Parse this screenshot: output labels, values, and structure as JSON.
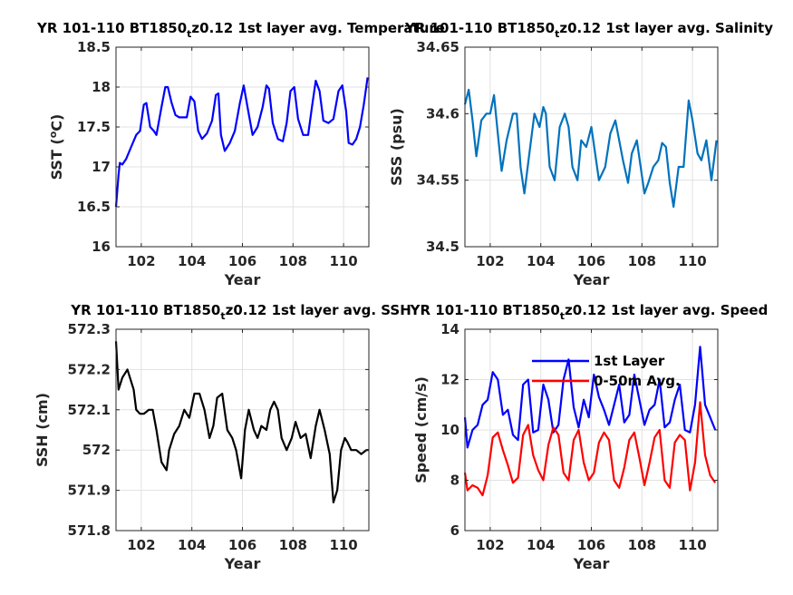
{
  "chart_data": [
    {
      "type": "line",
      "title": "YR 101-110 BT1850",
      "title_sub": "t",
      "title_rest": "z0.12 1st layer avg. Temperature",
      "xlabel": "Year",
      "ylabel": "SST (",
      "ylabel_sup": "o",
      "ylabel_end": "C)",
      "xlim": [
        101,
        111
      ],
      "ylim": [
        16,
        18.5
      ],
      "xticks": [
        102,
        104,
        106,
        108,
        110
      ],
      "yticks": [
        16,
        16.5,
        17,
        17.5,
        18,
        18.5
      ],
      "ytick_labels": [
        "16",
        "16.5",
        "17",
        "17.5",
        "18",
        "18.5"
      ],
      "grid": true,
      "series": [
        {
          "color": "#0000ff",
          "x": [
            101.0,
            101.1,
            101.15,
            101.25,
            101.4,
            101.6,
            101.8,
            101.95,
            102.1,
            102.2,
            102.35,
            102.5,
            102.6,
            102.8,
            102.95,
            103.05,
            103.2,
            103.35,
            103.5,
            103.8,
            103.95,
            104.1,
            104.25,
            104.4,
            104.6,
            104.8,
            104.95,
            105.05,
            105.15,
            105.3,
            105.5,
            105.7,
            105.9,
            106.05,
            106.2,
            106.4,
            106.6,
            106.8,
            106.95,
            107.05,
            107.2,
            107.4,
            107.6,
            107.75,
            107.9,
            108.05,
            108.2,
            108.4,
            108.6,
            108.75,
            108.9,
            109.05,
            109.2,
            109.4,
            109.6,
            109.8,
            109.95,
            110.1,
            110.2,
            110.35,
            110.5,
            110.65,
            110.8,
            110.95
          ],
          "y": [
            16.5,
            16.9,
            17.05,
            17.03,
            17.1,
            17.25,
            17.4,
            17.45,
            17.78,
            17.8,
            17.5,
            17.45,
            17.4,
            17.75,
            18.0,
            18.0,
            17.8,
            17.65,
            17.62,
            17.62,
            17.88,
            17.82,
            17.45,
            17.35,
            17.42,
            17.58,
            17.9,
            17.92,
            17.4,
            17.2,
            17.3,
            17.45,
            17.8,
            18.02,
            17.75,
            17.4,
            17.5,
            17.75,
            18.02,
            17.98,
            17.55,
            17.35,
            17.32,
            17.55,
            17.95,
            18.0,
            17.6,
            17.4,
            17.4,
            17.75,
            18.08,
            17.95,
            17.58,
            17.55,
            17.6,
            17.95,
            18.02,
            17.7,
            17.3,
            17.28,
            17.35,
            17.5,
            17.78,
            18.12
          ]
        }
      ]
    },
    {
      "type": "line",
      "title": "YR 101-110 BT1850",
      "title_sub": "t",
      "title_rest": "z0.12 1st layer avg. Salinity",
      "xlabel": "Year",
      "ylabel": "SSS (psu)",
      "xlim": [
        101,
        111
      ],
      "ylim": [
        34.5,
        34.65
      ],
      "xticks": [
        102,
        104,
        106,
        108,
        110
      ],
      "yticks": [
        34.5,
        34.55,
        34.6,
        34.65
      ],
      "ytick_labels": [
        "34.5",
        "34.55",
        "34.6",
        "34.65"
      ],
      "grid": true,
      "series": [
        {
          "color": "#0072bd",
          "x": [
            101.0,
            101.15,
            101.3,
            101.45,
            101.65,
            101.85,
            102.0,
            102.15,
            102.3,
            102.45,
            102.65,
            102.9,
            103.05,
            103.2,
            103.35,
            103.55,
            103.75,
            103.95,
            104.1,
            104.2,
            104.35,
            104.55,
            104.75,
            104.95,
            105.1,
            105.25,
            105.45,
            105.6,
            105.8,
            106.0,
            106.15,
            106.3,
            106.55,
            106.75,
            106.95,
            107.1,
            107.25,
            107.45,
            107.6,
            107.8,
            107.95,
            108.1,
            108.25,
            108.45,
            108.65,
            108.8,
            108.95,
            109.1,
            109.25,
            109.45,
            109.65,
            109.85,
            110.0,
            110.2,
            110.35,
            110.55,
            110.75,
            110.95
          ],
          "y": [
            34.607,
            34.618,
            34.595,
            34.568,
            34.595,
            34.6,
            34.6,
            34.614,
            34.585,
            34.557,
            34.58,
            34.6,
            34.6,
            34.56,
            34.54,
            34.57,
            34.6,
            34.59,
            34.605,
            34.6,
            34.56,
            34.55,
            34.59,
            34.6,
            34.59,
            34.56,
            34.55,
            34.58,
            34.575,
            34.59,
            34.57,
            34.55,
            34.56,
            34.585,
            34.595,
            34.58,
            34.565,
            34.548,
            34.57,
            34.58,
            34.56,
            34.54,
            34.548,
            34.56,
            34.565,
            34.578,
            34.575,
            34.548,
            34.53,
            34.56,
            34.56,
            34.61,
            34.595,
            34.57,
            34.565,
            34.58,
            34.55,
            34.58
          ]
        }
      ]
    },
    {
      "type": "line",
      "title": "YR 101-110 BT1850",
      "title_sub": "t",
      "title_rest": "z0.12 1st layer avg. SSH",
      "xlabel": "Year",
      "ylabel": "SSH (cm)",
      "xlim": [
        101,
        111
      ],
      "ylim": [
        571.8,
        572.3
      ],
      "xticks": [
        102,
        104,
        106,
        108,
        110
      ],
      "yticks": [
        571.8,
        571.9,
        572.0,
        572.1,
        572.2,
        572.3
      ],
      "ytick_labels": [
        "571.8",
        "571.9",
        "572",
        "572.1",
        "572.2",
        "572.3"
      ],
      "grid": true,
      "series": [
        {
          "color": "#000000",
          "x": [
            101.0,
            101.1,
            101.25,
            101.45,
            101.7,
            101.8,
            101.95,
            102.1,
            102.3,
            102.45,
            102.6,
            102.8,
            103.0,
            103.1,
            103.3,
            103.5,
            103.7,
            103.9,
            104.1,
            104.3,
            104.5,
            104.7,
            104.85,
            105.0,
            105.2,
            105.4,
            105.6,
            105.75,
            105.95,
            106.1,
            106.25,
            106.45,
            106.6,
            106.75,
            106.95,
            107.1,
            107.25,
            107.4,
            107.55,
            107.75,
            107.95,
            108.1,
            108.3,
            108.5,
            108.7,
            108.9,
            109.05,
            109.25,
            109.45,
            109.6,
            109.75,
            109.9,
            110.05,
            110.15,
            110.3,
            110.5,
            110.7,
            110.9,
            111.0
          ],
          "y": [
            572.27,
            572.15,
            572.18,
            572.2,
            572.15,
            572.1,
            572.09,
            572.09,
            572.1,
            572.1,
            572.05,
            571.97,
            571.95,
            572.0,
            572.04,
            572.06,
            572.1,
            572.08,
            572.14,
            572.14,
            572.1,
            572.03,
            572.06,
            572.13,
            572.14,
            572.05,
            572.03,
            572.0,
            571.93,
            572.05,
            572.1,
            572.05,
            572.03,
            572.06,
            572.05,
            572.1,
            572.12,
            572.1,
            572.03,
            572.0,
            572.03,
            572.07,
            572.03,
            572.04,
            571.98,
            572.06,
            572.1,
            572.05,
            571.99,
            571.87,
            571.9,
            572.0,
            572.03,
            572.02,
            572.0,
            572.0,
            571.99,
            572.0,
            572.0
          ]
        }
      ]
    },
    {
      "type": "line",
      "title": "YR 101-110 BT1850",
      "title_sub": "t",
      "title_rest": "z0.12 1st layer avg. Speed",
      "xlabel": "Year",
      "ylabel": "Speed (cm/s)",
      "xlim": [
        101,
        111
      ],
      "ylim": [
        6,
        14
      ],
      "xticks": [
        102,
        104,
        106,
        108,
        110
      ],
      "yticks": [
        6,
        8,
        10,
        12,
        14
      ],
      "ytick_labels": [
        "6",
        "8",
        "10",
        "12",
        "14"
      ],
      "grid": true,
      "legend": {
        "placement": "top-right",
        "items": [
          "1st Layer",
          "0-50m Avg."
        ]
      },
      "series": [
        {
          "name": "1st Layer",
          "color": "#0000ff",
          "x": [
            101.0,
            101.1,
            101.3,
            101.5,
            101.7,
            101.9,
            102.1,
            102.3,
            102.5,
            102.7,
            102.9,
            103.1,
            103.3,
            103.5,
            103.7,
            103.9,
            104.1,
            104.3,
            104.5,
            104.7,
            104.9,
            105.1,
            105.3,
            105.5,
            105.7,
            105.9,
            106.1,
            106.3,
            106.5,
            106.7,
            106.9,
            107.1,
            107.3,
            107.5,
            107.7,
            107.9,
            108.1,
            108.3,
            108.5,
            108.7,
            108.9,
            109.1,
            109.3,
            109.5,
            109.7,
            109.9,
            110.1,
            110.3,
            110.5,
            110.7,
            110.9
          ],
          "y": [
            10.5,
            9.3,
            10.0,
            10.2,
            11.0,
            11.2,
            12.3,
            12.0,
            10.6,
            10.8,
            9.8,
            9.6,
            11.8,
            12.0,
            9.9,
            10.0,
            11.8,
            11.2,
            9.9,
            10.2,
            12.0,
            12.8,
            10.9,
            10.1,
            11.2,
            10.5,
            12.2,
            11.3,
            10.8,
            10.2,
            11.0,
            11.8,
            10.3,
            10.6,
            12.2,
            11.2,
            10.2,
            10.8,
            11.0,
            12.0,
            10.1,
            10.3,
            11.2,
            11.8,
            10.0,
            9.9,
            11.0,
            13.3,
            11.0,
            10.5,
            10.0
          ]
        },
        {
          "name": "0-50m Avg.",
          "color": "#ff0000",
          "x": [
            101.0,
            101.1,
            101.3,
            101.5,
            101.7,
            101.9,
            102.1,
            102.3,
            102.5,
            102.7,
            102.9,
            103.1,
            103.3,
            103.5,
            103.7,
            103.9,
            104.1,
            104.3,
            104.5,
            104.7,
            104.9,
            105.1,
            105.3,
            105.5,
            105.7,
            105.9,
            106.1,
            106.3,
            106.5,
            106.7,
            106.9,
            107.1,
            107.3,
            107.5,
            107.7,
            107.9,
            108.1,
            108.3,
            108.5,
            108.7,
            108.9,
            109.1,
            109.3,
            109.5,
            109.7,
            109.9,
            110.1,
            110.3,
            110.5,
            110.7,
            110.9
          ],
          "y": [
            8.3,
            7.6,
            7.8,
            7.7,
            7.4,
            8.2,
            9.7,
            9.9,
            9.2,
            8.6,
            7.9,
            8.1,
            9.8,
            10.2,
            9.0,
            8.4,
            8.0,
            9.4,
            10.1,
            9.8,
            8.3,
            8.0,
            9.6,
            10.0,
            8.7,
            8.0,
            8.3,
            9.5,
            9.9,
            9.6,
            8.0,
            7.7,
            8.5,
            9.6,
            9.9,
            8.9,
            7.8,
            8.7,
            9.7,
            10.0,
            8.0,
            7.7,
            9.5,
            9.8,
            9.6,
            7.6,
            8.7,
            11.1,
            9.0,
            8.2,
            7.9
          ]
        }
      ]
    }
  ]
}
